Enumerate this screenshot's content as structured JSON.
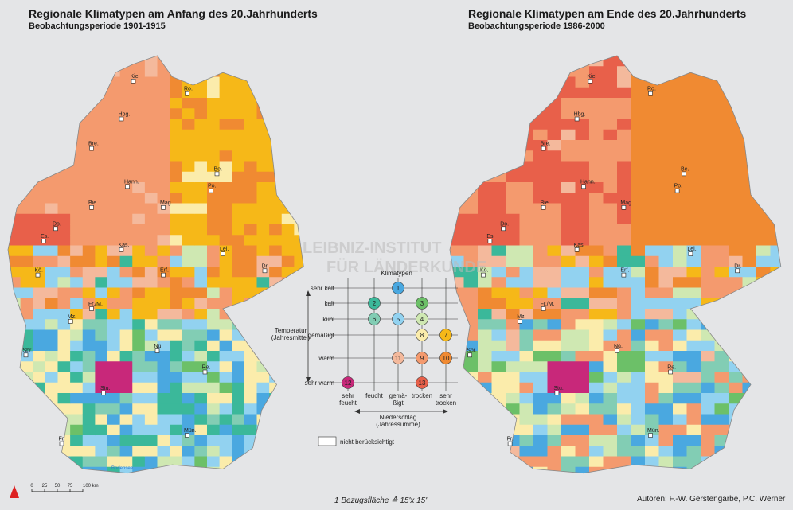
{
  "maps": [
    {
      "title": "Regionale Klimatypen am Anfang des 20.Jahrhunderts",
      "subtitle": "Beobachtungsperiode 1901-1915",
      "cities": [
        "Kiel",
        "Ro.",
        "Hbg.",
        "Bre.",
        "Hann.",
        "Be.",
        "Bie.",
        "Mag.",
        "Po.",
        "Do.",
        "Es.",
        "Kas.",
        "Lei.",
        "Kö.",
        "Erf.",
        "Dr.",
        "Fr./M.",
        "Mz.",
        "Nü.",
        "Sbr.",
        "Re.",
        "Stu.",
        "Mün.",
        "Fr."
      ],
      "lake": "Bodensee"
    },
    {
      "title": "Regionale Klimatypen am Ende des 20.Jahrhunderts",
      "subtitle": "Beobachtungsperiode 1986-2000",
      "cities": [
        "Kiel",
        "Ro.",
        "Hbg.",
        "Bre.",
        "Hann.",
        "Be.",
        "Bie.",
        "Mag.",
        "Po.",
        "Do.",
        "Es.",
        "Kas.",
        "Lei.",
        "Kö.",
        "Erf.",
        "Dr.",
        "Fr./M.",
        "Mz.",
        "Nü.",
        "Sbr.",
        "Re.",
        "Stu.",
        "Mün.",
        "Fr."
      ]
    }
  ],
  "legend": {
    "title": "Klimatypen",
    "rows": [
      "sehr kalt",
      "kalt",
      "kühl",
      "gemäßigt",
      "warm",
      "sehr warm"
    ],
    "columns": [
      "sehr feucht",
      "feucht",
      "gemä- ßigt",
      "trocken",
      "sehr trocken"
    ],
    "temperature": "Temperatur (Jahresmittel)",
    "precipitation": "Niederschlag (Jahressumme)",
    "types": [
      {
        "number": 1,
        "color": "#4aa8e0"
      },
      {
        "number": 2,
        "color": "#3bb89a"
      },
      {
        "number": 3,
        "color": "#6cc068"
      },
      {
        "number": 4,
        "color": "#cfe8b2"
      },
      {
        "number": 5,
        "color": "#92d2f0"
      },
      {
        "number": 6,
        "color": "#82cdb4"
      },
      {
        "number": 7,
        "color": "#f6b818"
      },
      {
        "number": 8,
        "color": "#fbecab"
      },
      {
        "number": 9,
        "color": "#f49a6e"
      },
      {
        "number": 10,
        "color": "#f08a32"
      },
      {
        "number": 11,
        "color": "#f4b99c"
      },
      {
        "number": 12,
        "color": "#c8287a"
      },
      {
        "number": 13,
        "color": "#e8604a"
      }
    ],
    "not_considered": "nicht berücksichtigt"
  },
  "watermark": [
    "LEIBNIZ-INSTITUT",
    "FÜR LÄNDERKUNDE"
  ],
  "scale": {
    "ticks": [
      "0",
      "25",
      "50",
      "75",
      "100 km"
    ]
  },
  "footnote": "1 Bezugsfläche ≙ 15'x 15'",
  "authors": "Autoren:  F.-W. Gerstengarbe, P.C. Werner"
}
